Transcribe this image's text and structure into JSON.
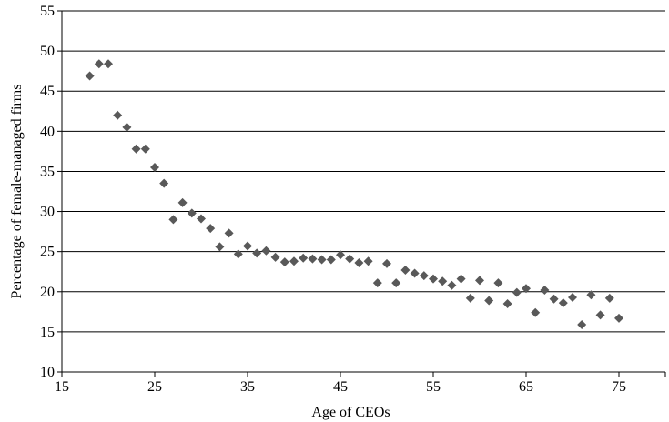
{
  "chart_data": {
    "type": "scatter",
    "xlabel": "Age of CEOs",
    "ylabel": "Percentage of female-managed firms",
    "xlim": [
      15,
      80
    ],
    "ylim": [
      10,
      55
    ],
    "xticks": [
      15,
      25,
      35,
      45,
      55,
      65,
      75
    ],
    "yticks": [
      10,
      15,
      20,
      25,
      30,
      35,
      40,
      45,
      50,
      55
    ],
    "grid": "horizontal",
    "marker": "diamond",
    "marker_color": "#595959",
    "points": [
      {
        "x": 18,
        "y": 46.9
      },
      {
        "x": 19,
        "y": 48.4
      },
      {
        "x": 20,
        "y": 48.4
      },
      {
        "x": 21,
        "y": 42.0
      },
      {
        "x": 22,
        "y": 40.5
      },
      {
        "x": 23,
        "y": 37.8
      },
      {
        "x": 24,
        "y": 37.8
      },
      {
        "x": 25,
        "y": 35.5
      },
      {
        "x": 26,
        "y": 33.5
      },
      {
        "x": 27,
        "y": 29.0
      },
      {
        "x": 28,
        "y": 31.1
      },
      {
        "x": 29,
        "y": 29.8
      },
      {
        "x": 30,
        "y": 29.1
      },
      {
        "x": 31,
        "y": 27.9
      },
      {
        "x": 32,
        "y": 25.6
      },
      {
        "x": 33,
        "y": 27.3
      },
      {
        "x": 34,
        "y": 24.7
      },
      {
        "x": 35,
        "y": 25.7
      },
      {
        "x": 36,
        "y": 24.8
      },
      {
        "x": 37,
        "y": 25.1
      },
      {
        "x": 38,
        "y": 24.3
      },
      {
        "x": 39,
        "y": 23.7
      },
      {
        "x": 40,
        "y": 23.8
      },
      {
        "x": 41,
        "y": 24.2
      },
      {
        "x": 42,
        "y": 24.1
      },
      {
        "x": 43,
        "y": 24.0
      },
      {
        "x": 44,
        "y": 24.0
      },
      {
        "x": 45,
        "y": 24.6
      },
      {
        "x": 46,
        "y": 24.1
      },
      {
        "x": 47,
        "y": 23.6
      },
      {
        "x": 48,
        "y": 23.8
      },
      {
        "x": 49,
        "y": 21.1
      },
      {
        "x": 50,
        "y": 23.5
      },
      {
        "x": 51,
        "y": 21.1
      },
      {
        "x": 52,
        "y": 22.7
      },
      {
        "x": 53,
        "y": 22.3
      },
      {
        "x": 54,
        "y": 22.0
      },
      {
        "x": 55,
        "y": 21.6
      },
      {
        "x": 56,
        "y": 21.3
      },
      {
        "x": 57,
        "y": 20.8
      },
      {
        "x": 58,
        "y": 21.6
      },
      {
        "x": 59,
        "y": 19.2
      },
      {
        "x": 60,
        "y": 21.4
      },
      {
        "x": 61,
        "y": 18.9
      },
      {
        "x": 62,
        "y": 21.1
      },
      {
        "x": 63,
        "y": 18.5
      },
      {
        "x": 64,
        "y": 19.9
      },
      {
        "x": 65,
        "y": 20.4
      },
      {
        "x": 66,
        "y": 17.4
      },
      {
        "x": 67,
        "y": 20.2
      },
      {
        "x": 68,
        "y": 19.1
      },
      {
        "x": 69,
        "y": 18.6
      },
      {
        "x": 70,
        "y": 19.3
      },
      {
        "x": 71,
        "y": 15.9
      },
      {
        "x": 72,
        "y": 19.6
      },
      {
        "x": 73,
        "y": 17.1
      },
      {
        "x": 74,
        "y": 19.2
      },
      {
        "x": 75,
        "y": 16.7
      }
    ]
  }
}
